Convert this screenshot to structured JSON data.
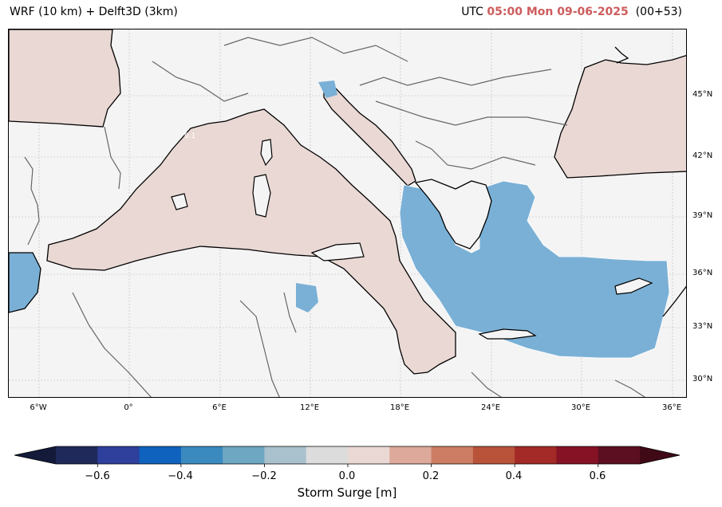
{
  "header": {
    "model_title": "WRF (10 km) + Delft3D (3km)",
    "utc_prefix": "UTC",
    "valid_time": "05:00 Mon 09-06-2025",
    "forecast_step": "(00+53)"
  },
  "map": {
    "lat_labels": [
      "45°N",
      "42°N",
      "39°N",
      "36°N",
      "33°N",
      "30°N"
    ],
    "lon_labels": [
      "6°W",
      "0°",
      "6°E",
      "12°E",
      "18°E",
      "24°E",
      "30°E",
      "36°E"
    ],
    "contour_label": "0.1",
    "colors": {
      "land": "#f4f4f4",
      "sea_positive": "#e9d8d4",
      "sea_negative": "#7ab0d6",
      "border": "#666666",
      "coast": "#000000"
    }
  },
  "colorbar": {
    "label": "Storm Surge [m]",
    "tick_labels": [
      "−0.6",
      "−0.4",
      "−0.2",
      "0.0",
      "0.2",
      "0.4",
      "0.6"
    ],
    "colors": [
      "#1f2a5a",
      "#2e3f9c",
      "#0f62be",
      "#3a8ac0",
      "#6da7c2",
      "#a9c1cc",
      "#dcdcdc",
      "#ead8d4",
      "#dca99a",
      "#cc7d63",
      "#b8533a",
      "#a32a26",
      "#851225",
      "#5c0f20"
    ],
    "extend_low_color": "#131a3a",
    "extend_high_color": "#3f0a16"
  }
}
